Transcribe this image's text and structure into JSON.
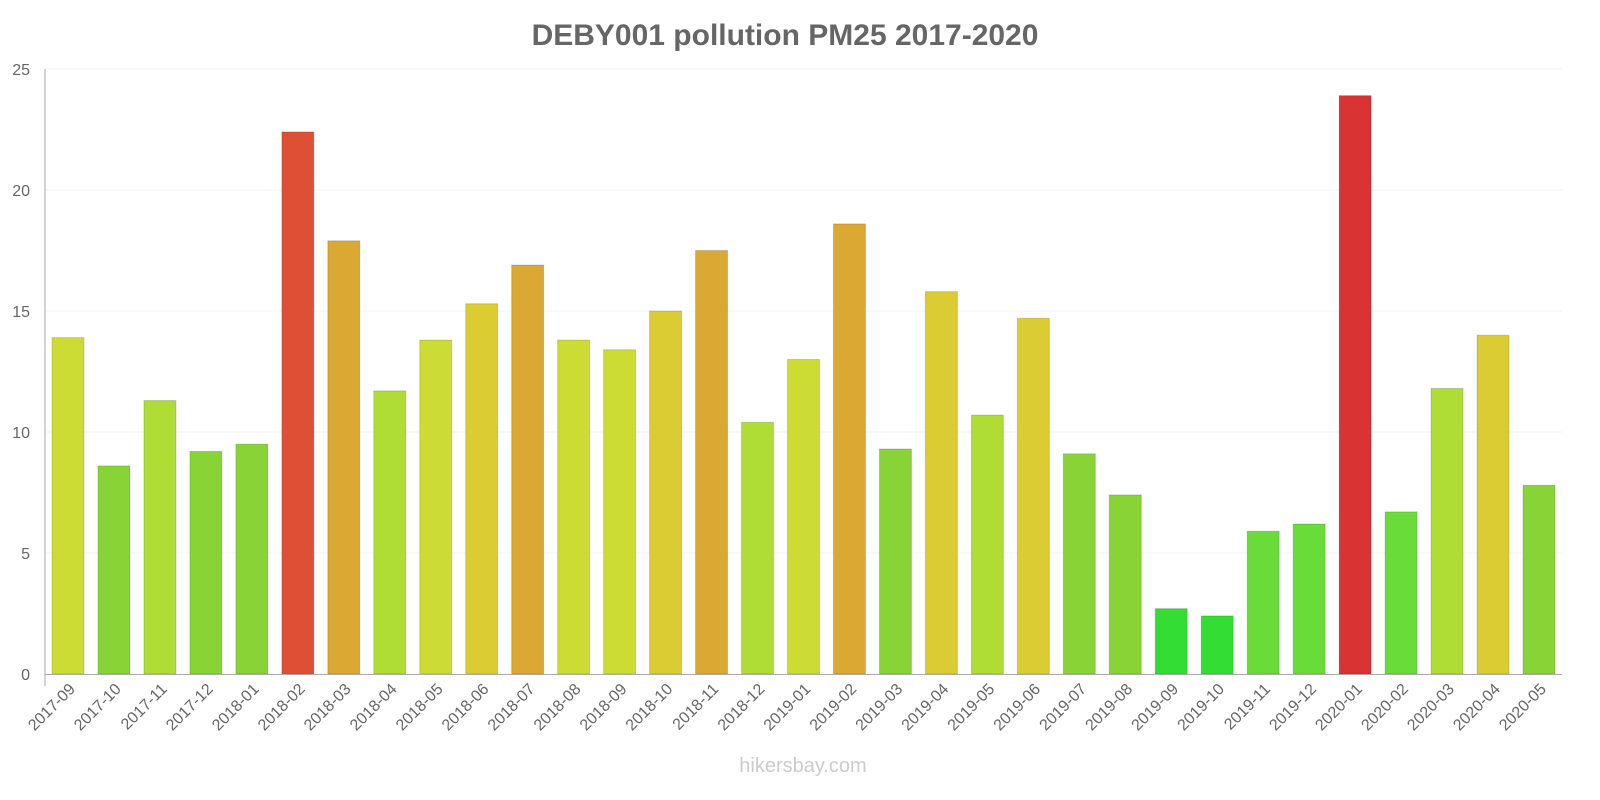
{
  "chart_data": {
    "type": "bar",
    "title": "DEBY001 pollution PM25 2017-2020",
    "xlabel": "",
    "ylabel": "",
    "ylim": [
      0,
      25
    ],
    "yticks": [
      0,
      5,
      10,
      15,
      20,
      25
    ],
    "grid": true,
    "categories": [
      "2017-09",
      "2017-10",
      "2017-11",
      "2017-12",
      "2018-01",
      "2018-02",
      "2018-03",
      "2018-04",
      "2018-05",
      "2018-06",
      "2018-07",
      "2018-08",
      "2018-09",
      "2018-10",
      "2018-11",
      "2018-12",
      "2019-01",
      "2019-02",
      "2019-03",
      "2019-04",
      "2019-05",
      "2019-06",
      "2019-07",
      "2019-08",
      "2019-09",
      "2019-10",
      "2019-11",
      "2019-12",
      "2020-01",
      "2020-02",
      "2020-03",
      "2020-04",
      "2020-05"
    ],
    "values": [
      13.9,
      8.6,
      11.3,
      9.2,
      9.5,
      22.4,
      17.9,
      11.7,
      13.8,
      15.3,
      16.9,
      13.8,
      13.4,
      15.0,
      17.5,
      10.4,
      13.0,
      18.6,
      9.3,
      15.8,
      10.7,
      14.7,
      9.1,
      7.4,
      2.7,
      2.4,
      5.9,
      6.2,
      23.9,
      6.7,
      11.8,
      14.0,
      7.8
    ],
    "color_scale": [
      {
        "max": 5,
        "color": "#33dd33"
      },
      {
        "max": 7,
        "color": "#6adc39"
      },
      {
        "max": 10,
        "color": "#88d437"
      },
      {
        "max": 12,
        "color": "#b0dc36"
      },
      {
        "max": 14,
        "color": "#cddc34"
      },
      {
        "max": 16,
        "color": "#dccc34"
      },
      {
        "max": 20,
        "color": "#dca834"
      },
      {
        "max": 23,
        "color": "#dd5036"
      },
      {
        "max": 100,
        "color": "#d93333"
      }
    ]
  },
  "credit": "hikersbay.com"
}
